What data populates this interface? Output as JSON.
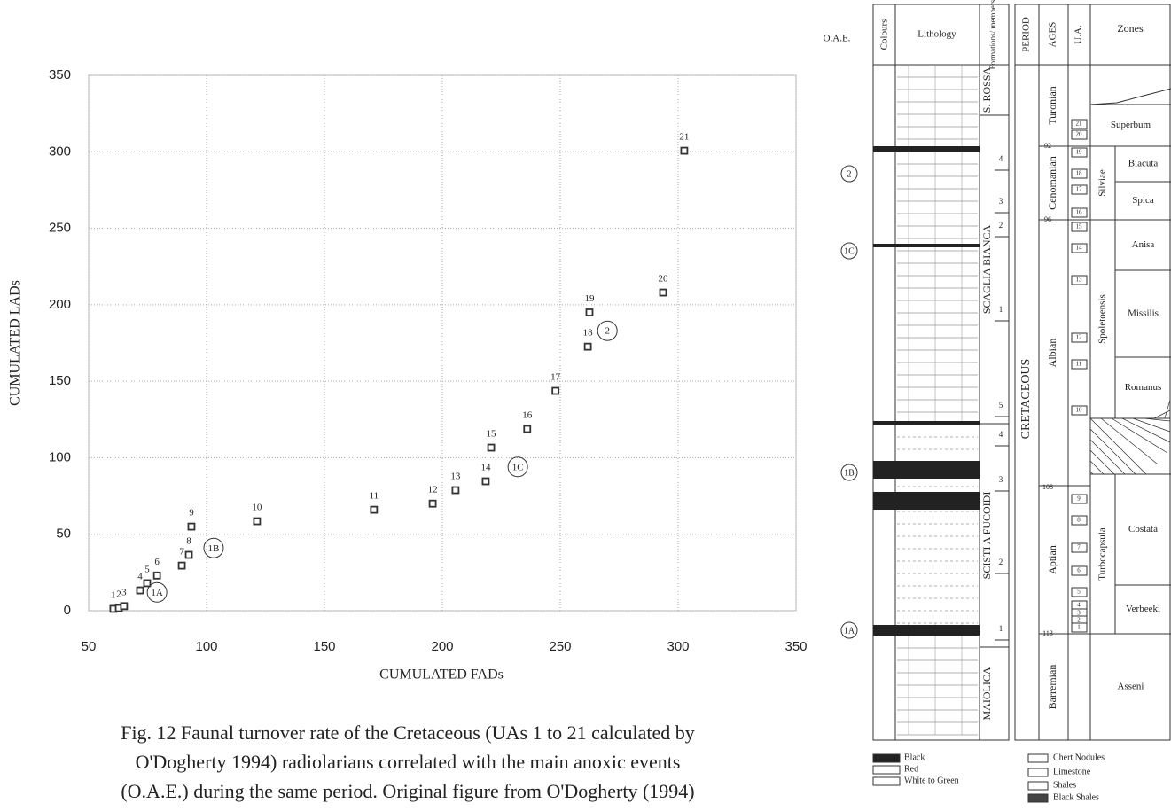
{
  "chart_data": {
    "type": "scatter",
    "xlabel": "CUMULATED FADs",
    "ylabel": "CUMULATED LADs",
    "x": [
      60.5,
      62.8,
      65,
      71.8,
      74.8,
      79,
      89.5,
      92.5,
      93.6,
      121.4,
      171,
      195.9,
      205.6,
      218.4,
      220.7,
      236,
      248,
      261.7,
      262.4,
      293.6,
      302.6
    ],
    "values": [
      1.2,
      1.7,
      3,
      13.3,
      18,
      23,
      29.5,
      36.5,
      55,
      58.5,
      66,
      70,
      78.8,
      84.6,
      106.6,
      118.8,
      143.7,
      172.6,
      195,
      208,
      300.7
    ],
    "point_labels": [
      "1",
      "2",
      "3",
      "4",
      "5",
      "6",
      "7",
      "8",
      "9",
      "10",
      "11",
      "12",
      "13",
      "14",
      "15",
      "16",
      "17",
      "18",
      "19",
      "20",
      "21"
    ],
    "annotations": [
      {
        "text": "1A",
        "x": 79,
        "y": 12
      },
      {
        "text": "1B",
        "x": 103,
        "y": 41
      },
      {
        "text": "1C",
        "x": 232,
        "y": 94
      },
      {
        "text": "2",
        "x": 270,
        "y": 183
      }
    ],
    "color": "#333333",
    "xlim": [
      50,
      350
    ],
    "xticks": [
      50,
      100,
      150,
      200,
      250,
      300,
      350
    ],
    "ylim": [
      0,
      350
    ],
    "yticks": [
      0,
      50,
      100,
      150,
      200,
      250,
      300,
      350
    ],
    "grid": true
  },
  "caption": [
    "Fig. 12 Faunal turnover rate of the Cretaceous (UAs 1 to 21 calculated by",
    "O'Dogherty 1994) radiolarians correlated with the main anoxic events",
    "(O.A.E.) during the same period. Original figure from O'Dogherty (1994)"
  ],
  "column": {
    "headers": {
      "oae": "O.A.E.",
      "colours": "Colours",
      "lithology": "Lithology",
      "formations": "Formations/ members",
      "period": "PERIOD",
      "ages": "AGES",
      "ua": "U.A.",
      "zones": "Zones"
    },
    "oae": [
      "2",
      "1C",
      "1B",
      "1A"
    ],
    "formations": [
      "S. ROSSA",
      "SCAGLIA BIANCA",
      "SCISTI A FUCOIDI",
      "MAIOLICA"
    ],
    "members": [
      "4",
      "3",
      "2",
      "1",
      "5",
      "4",
      "3",
      "2",
      "1"
    ],
    "period": "CRETACEOUS",
    "ages": [
      "Turonian",
      "Cenomanian",
      "Albian",
      "Aptian",
      "Barremian"
    ],
    "age_boundaries": [
      92,
      96,
      108,
      113
    ],
    "ua": [
      "21",
      "20",
      "19",
      "18",
      "17",
      "16",
      "15",
      "14",
      "13",
      "12",
      "11",
      "10",
      "9",
      "8",
      "7",
      "6",
      "5",
      "4",
      "3",
      "2",
      "1"
    ],
    "subzones": [
      "Silviae",
      "Spoletoensis",
      "Turbocapsula"
    ],
    "zones": [
      "Superbum",
      "Biacuta",
      "Spica",
      "Anisa",
      "Missilis",
      "Romanus",
      "Costata",
      "Verbeeki",
      "Asseni"
    ],
    "legend": [
      "Black",
      "Red",
      "White to Green",
      "Chert Nodules",
      "Limestone",
      "Shales",
      "Black Shales"
    ]
  }
}
